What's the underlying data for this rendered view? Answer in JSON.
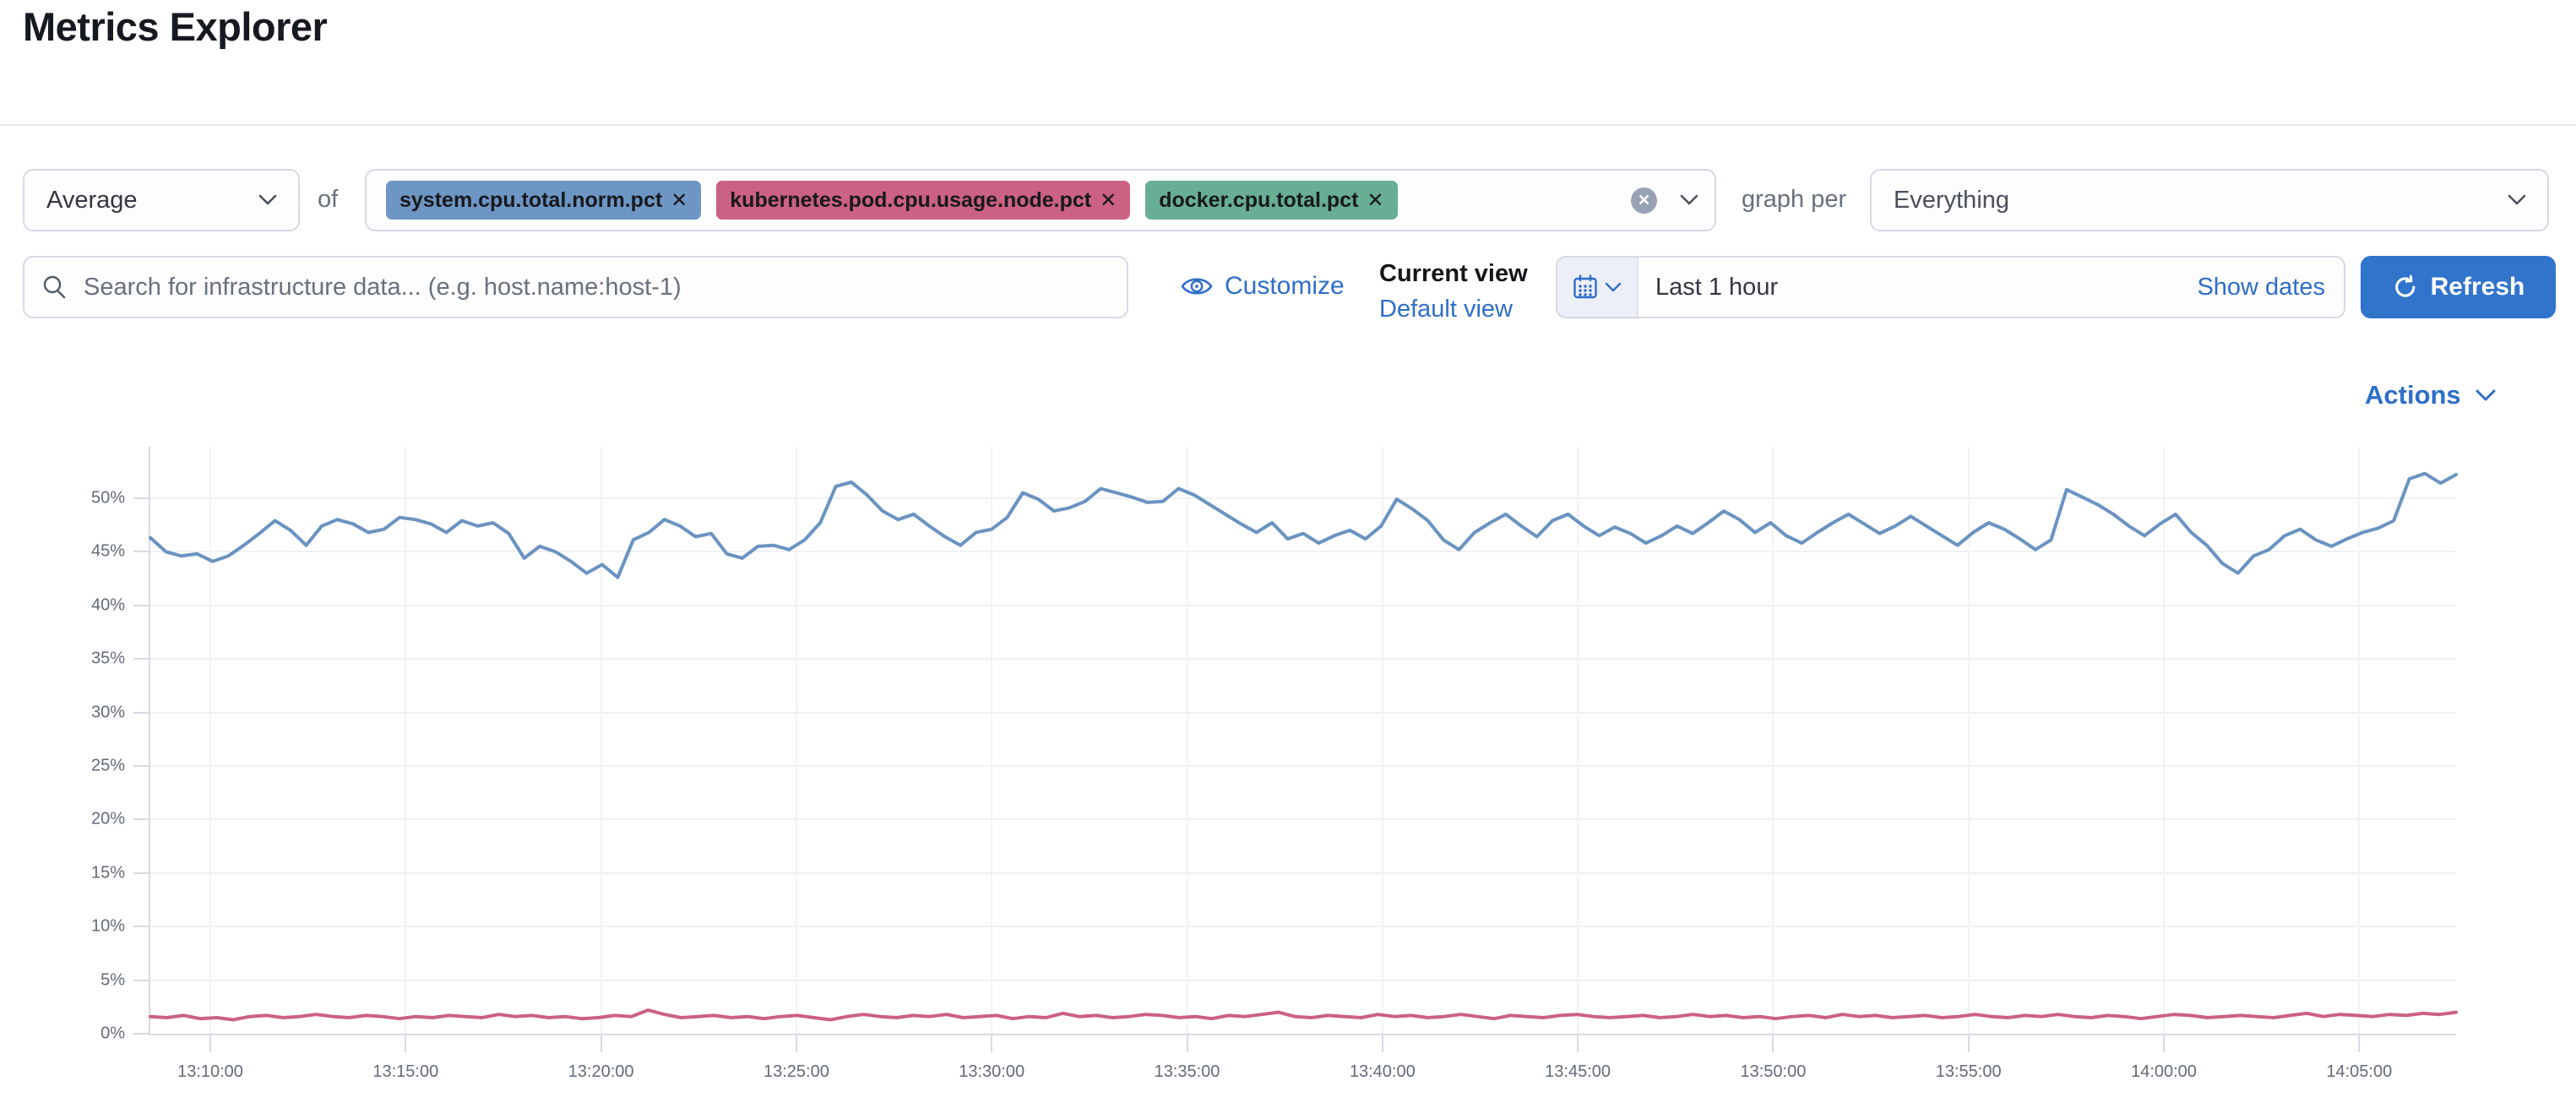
{
  "page": {
    "title": "Metrics Explorer"
  },
  "toolbar": {
    "aggregation": {
      "value": "Average"
    },
    "of_label": "of",
    "metrics": [
      {
        "label": "system.cpu.total.norm.pct",
        "remove_glyph": "✕",
        "color": "#6d96c4"
      },
      {
        "label": "kubernetes.pod.cpu.usage.node.pct",
        "remove_glyph": "✕",
        "color": "#cb6183"
      },
      {
        "label": "docker.cpu.total.pct",
        "remove_glyph": "✕",
        "color": "#67ae94"
      }
    ],
    "clear_glyph": "✕",
    "graph_per_label": "graph per",
    "group_by": {
      "value": "Everything"
    }
  },
  "searchbar": {
    "placeholder": "Search for infrastructure data... (e.g. host.name:host-1)"
  },
  "view_controls": {
    "customize_label": "Customize",
    "current_view_label": "Current view",
    "default_view_label": "Default view"
  },
  "datepicker": {
    "value": "Last 1 hour",
    "show_dates_label": "Show dates",
    "refresh_label": "Refresh"
  },
  "actions": {
    "label": "Actions"
  },
  "colors": {
    "link_blue": "#2e6ec8",
    "refresh_button": "#3174cc",
    "series_blue": "#6a93c1",
    "series_pink": "#cb6181"
  },
  "chart_data": {
    "type": "line",
    "title": "",
    "xlabel": "",
    "ylabel": "",
    "grid": true,
    "legend": "none",
    "ylim": [
      0,
      54.8
    ],
    "y_tick_labels": [
      "0%",
      "5%",
      "10%",
      "15%",
      "20%",
      "25%",
      "30%",
      "35%",
      "40%",
      "45%",
      "50%"
    ],
    "x_tick_labels": [
      "13:10:00",
      "13:15:00",
      "13:20:00",
      "13:25:00",
      "13:30:00",
      "13:35:00",
      "13:40:00",
      "13:45:00",
      "13:50:00",
      "13:55:00",
      "14:00:00",
      "14:05:00"
    ],
    "x_range": [
      "13:08:30",
      "14:07:30"
    ],
    "series": [
      {
        "name": "system.cpu.total.norm.pct",
        "color": "#6a93c1",
        "unit": "%",
        "values": [
          46.3,
          45.0,
          44.6,
          44.8,
          44.1,
          44.6,
          45.6,
          46.7,
          47.9,
          47.0,
          45.6,
          47.4,
          48.0,
          47.6,
          46.8,
          47.1,
          48.2,
          48.0,
          47.6,
          46.8,
          47.9,
          47.4,
          47.7,
          46.7,
          44.4,
          45.5,
          45.0,
          44.1,
          43.0,
          43.8,
          42.6,
          46.1,
          46.8,
          48.0,
          47.4,
          46.4,
          46.7,
          44.8,
          44.4,
          45.5,
          45.6,
          45.2,
          46.1,
          47.7,
          51.1,
          51.5,
          50.3,
          48.8,
          48.0,
          48.5,
          47.4,
          46.4,
          45.6,
          46.8,
          47.1,
          48.2,
          50.5,
          49.9,
          48.8,
          49.1,
          49.7,
          50.9,
          50.5,
          50.1,
          49.6,
          49.7,
          50.9,
          50.3,
          49.4,
          48.5,
          47.6,
          46.8,
          47.7,
          46.2,
          46.7,
          45.8,
          46.5,
          47.0,
          46.2,
          47.4,
          49.9,
          49.0,
          47.9,
          46.1,
          45.2,
          46.8,
          47.7,
          48.5,
          47.4,
          46.4,
          47.9,
          48.5,
          47.4,
          46.5,
          47.3,
          46.7,
          45.8,
          46.5,
          47.4,
          46.7,
          47.7,
          48.8,
          48.0,
          46.8,
          47.7,
          46.5,
          45.8,
          46.8,
          47.7,
          48.5,
          47.6,
          46.7,
          47.4,
          48.3,
          47.4,
          46.5,
          45.6,
          46.8,
          47.7,
          47.1,
          46.2,
          45.2,
          46.1,
          50.8,
          50.1,
          49.4,
          48.5,
          47.4,
          46.5,
          47.6,
          48.5,
          46.8,
          45.6,
          43.9,
          43.0,
          44.6,
          45.2,
          46.5,
          47.1,
          46.1,
          45.5,
          46.2,
          46.8,
          47.2,
          47.9,
          51.8,
          52.3,
          51.4,
          52.2
        ]
      },
      {
        "name": "kubernetes.pod.cpu.usage.node.pct",
        "color": "#cb6181",
        "unit": "%",
        "values": [
          1.6,
          1.5,
          1.7,
          1.4,
          1.5,
          1.3,
          1.6,
          1.7,
          1.5,
          1.6,
          1.8,
          1.6,
          1.5,
          1.7,
          1.6,
          1.4,
          1.6,
          1.5,
          1.7,
          1.6,
          1.5,
          1.8,
          1.6,
          1.7,
          1.5,
          1.6,
          1.4,
          1.5,
          1.7,
          1.6,
          2.2,
          1.8,
          1.5,
          1.6,
          1.7,
          1.5,
          1.6,
          1.4,
          1.6,
          1.7,
          1.5,
          1.3,
          1.6,
          1.8,
          1.6,
          1.5,
          1.7,
          1.6,
          1.8,
          1.5,
          1.6,
          1.7,
          1.4,
          1.6,
          1.5,
          1.9,
          1.6,
          1.7,
          1.5,
          1.6,
          1.8,
          1.7,
          1.5,
          1.6,
          1.4,
          1.7,
          1.6,
          1.8,
          2.0,
          1.6,
          1.5,
          1.7,
          1.6,
          1.5,
          1.8,
          1.6,
          1.7,
          1.5,
          1.6,
          1.8,
          1.6,
          1.4,
          1.7,
          1.6,
          1.5,
          1.7,
          1.8,
          1.6,
          1.5,
          1.6,
          1.7,
          1.5,
          1.6,
          1.8,
          1.6,
          1.7,
          1.5,
          1.6,
          1.4,
          1.6,
          1.7,
          1.5,
          1.8,
          1.6,
          1.7,
          1.5,
          1.6,
          1.7,
          1.5,
          1.6,
          1.8,
          1.6,
          1.5,
          1.7,
          1.6,
          1.8,
          1.6,
          1.5,
          1.7,
          1.6,
          1.4,
          1.6,
          1.8,
          1.7,
          1.5,
          1.6,
          1.7,
          1.6,
          1.5,
          1.7,
          1.9,
          1.6,
          1.8,
          1.7,
          1.6,
          1.8,
          1.7,
          1.9,
          1.8,
          2.0
        ]
      }
    ]
  }
}
